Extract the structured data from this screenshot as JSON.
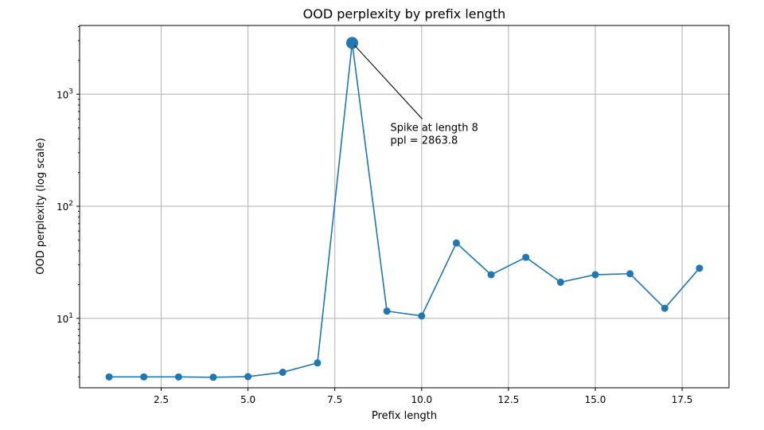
{
  "chart_data": {
    "type": "line",
    "title": "OOD perplexity by prefix length",
    "xlabel": "Prefix length",
    "ylabel": "OOD perplexity (log scale)",
    "yscale": "log",
    "xlim": [
      0.15,
      18.85
    ],
    "ylim": [
      2.4,
      4100
    ],
    "grid": true,
    "color": "#1f77b4",
    "x_ticks": [
      {
        "value": 2.5,
        "label": "2.5"
      },
      {
        "value": 5.0,
        "label": "5.0"
      },
      {
        "value": 7.5,
        "label": "7.5"
      },
      {
        "value": 10.0,
        "label": "10.0"
      },
      {
        "value": 12.5,
        "label": "12.5"
      },
      {
        "value": 15.0,
        "label": "15.0"
      },
      {
        "value": 17.5,
        "label": "17.5"
      }
    ],
    "y_ticks": [
      {
        "value": 10,
        "base": "10",
        "exp": "1"
      },
      {
        "value": 100,
        "base": "10",
        "exp": "2"
      },
      {
        "value": 1000,
        "base": "10",
        "exp": "3"
      }
    ],
    "x": [
      1,
      2,
      3,
      4,
      5,
      6,
      7,
      8,
      9,
      10,
      11,
      12,
      13,
      14,
      15,
      16,
      17,
      18
    ],
    "y": [
      3.0,
      3.0,
      3.0,
      2.98,
      3.02,
      3.3,
      4.0,
      2863.8,
      11.6,
      10.5,
      47,
      24.5,
      35,
      21,
      24.5,
      25,
      12.3,
      28
    ],
    "highlight": {
      "x": 8,
      "y": 2863.8
    },
    "annotation": {
      "lines": [
        "Spike at length 8",
        "ppl = 2863.8"
      ],
      "text_x": 9.1,
      "text_y": 470
    }
  }
}
